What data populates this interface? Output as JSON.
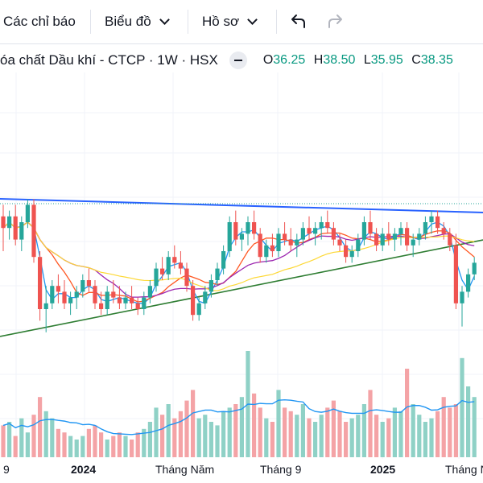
{
  "toolbar": {
    "indicators_label": "Các chỉ báo",
    "chart_label": "Biểu đồ",
    "profile_label": "Hồ sơ",
    "undo_icon": "undo-icon",
    "redo_icon": "redo-icon"
  },
  "legend": {
    "title": "óa chất Dầu khí - CTCP · 1W · HSX",
    "open_key": "O",
    "open": "36.25",
    "high_key": "H",
    "high": "38.50",
    "low_key": "L",
    "low": "35.95",
    "close_key": "C",
    "close": "38.35"
  },
  "colors": {
    "up": "#26a69a",
    "down": "#ef5350",
    "vol_up": "#8fd1c6",
    "vol_down": "#f4a3a6",
    "trend_blue": "#2962ff",
    "trend_green": "#2e7d32",
    "ma_blue": "#2196f3",
    "ma_orange": "#ff5722",
    "ma_purple": "#9c27b0",
    "ma_yellow": "#fdd835"
  },
  "chart_data": {
    "type": "candlestick",
    "x_tick_labels": [
      "9",
      "2024",
      "Tháng Năm",
      "Tháng 9",
      "2025",
      "Tháng N"
    ],
    "grid": true,
    "candles": [
      [
        46,
        48,
        40,
        44
      ],
      [
        44,
        47,
        42,
        46
      ],
      [
        46,
        48,
        41,
        42
      ],
      [
        42,
        46,
        40,
        45
      ],
      [
        45,
        49,
        44,
        48
      ],
      [
        48,
        49,
        38,
        39
      ],
      [
        39,
        40,
        28,
        30
      ],
      [
        30,
        34,
        26,
        31
      ],
      [
        31,
        35,
        30,
        34
      ],
      [
        34,
        36,
        31,
        33
      ],
      [
        33,
        35,
        30,
        31
      ],
      [
        31,
        33,
        29,
        32
      ],
      [
        32,
        34,
        30,
        33
      ],
      [
        33,
        36,
        32,
        35
      ],
      [
        35,
        37,
        33,
        34
      ],
      [
        34,
        35,
        30,
        31
      ],
      [
        31,
        33,
        29,
        30
      ],
      [
        30,
        34,
        29,
        33
      ],
      [
        33,
        35,
        31,
        32
      ],
      [
        32,
        34,
        30,
        31
      ],
      [
        31,
        33,
        30,
        32
      ],
      [
        32,
        34,
        30,
        31
      ],
      [
        31,
        32,
        29,
        30
      ],
      [
        30,
        33,
        29,
        32
      ],
      [
        32,
        35,
        31,
        34
      ],
      [
        34,
        38,
        33,
        37
      ],
      [
        37,
        39,
        35,
        36
      ],
      [
        36,
        40,
        35,
        39
      ],
      [
        39,
        41,
        37,
        38
      ],
      [
        38,
        40,
        36,
        37
      ],
      [
        37,
        38,
        33,
        34
      ],
      [
        34,
        35,
        28,
        29
      ],
      [
        29,
        32,
        28,
        31
      ],
      [
        31,
        34,
        30,
        33
      ],
      [
        33,
        36,
        32,
        35
      ],
      [
        35,
        38,
        34,
        37
      ],
      [
        37,
        41,
        36,
        40
      ],
      [
        40,
        46,
        39,
        45
      ],
      [
        45,
        47,
        41,
        42
      ],
      [
        42,
        44,
        40,
        43
      ],
      [
        43,
        46,
        41,
        45
      ],
      [
        45,
        47,
        42,
        43
      ],
      [
        43,
        44,
        38,
        39
      ],
      [
        39,
        42,
        38,
        41
      ],
      [
        41,
        43,
        39,
        40
      ],
      [
        40,
        44,
        39,
        43
      ],
      [
        43,
        45,
        41,
        42
      ],
      [
        42,
        44,
        40,
        41
      ],
      [
        41,
        43,
        39,
        42
      ],
      [
        42,
        45,
        41,
        44
      ],
      [
        44,
        46,
        42,
        43
      ],
      [
        43,
        45,
        41,
        44
      ],
      [
        44,
        46,
        42,
        45
      ],
      [
        45,
        47,
        43,
        44
      ],
      [
        44,
        45,
        41,
        42
      ],
      [
        42,
        43,
        40,
        41
      ],
      [
        41,
        42,
        38,
        39
      ],
      [
        39,
        41,
        38,
        40
      ],
      [
        40,
        43,
        39,
        42
      ],
      [
        42,
        46,
        41,
        45
      ],
      [
        45,
        47,
        42,
        43
      ],
      [
        43,
        44,
        40,
        41
      ],
      [
        41,
        44,
        40,
        43
      ],
      [
        43,
        45,
        41,
        42
      ],
      [
        42,
        44,
        40,
        43
      ],
      [
        43,
        45,
        41,
        44
      ],
      [
        44,
        45,
        40,
        41
      ],
      [
        41,
        43,
        39,
        42
      ],
      [
        42,
        44,
        41,
        43
      ],
      [
        43,
        46,
        42,
        45
      ],
      [
        45,
        47,
        43,
        46
      ],
      [
        46,
        47,
        43,
        44
      ],
      [
        44,
        45,
        42,
        43
      ],
      [
        43,
        44,
        40,
        41
      ],
      [
        41,
        43,
        30,
        31
      ],
      [
        31,
        34,
        27,
        33
      ],
      [
        33,
        37,
        32,
        36
      ],
      [
        36,
        39,
        35,
        38
      ]
    ],
    "volume": [
      18,
      20,
      12,
      22,
      14,
      24,
      34,
      26,
      22,
      16,
      14,
      12,
      10,
      12,
      16,
      18,
      14,
      10,
      12,
      14,
      12,
      10,
      14,
      16,
      20,
      28,
      24,
      30,
      22,
      26,
      32,
      38,
      22,
      24,
      20,
      18,
      26,
      28,
      30,
      34,
      60,
      36,
      28,
      22,
      20,
      38,
      28,
      26,
      24,
      30,
      22,
      20,
      24,
      28,
      32,
      26,
      20,
      22,
      24,
      30,
      38,
      24,
      20,
      22,
      28,
      26,
      50,
      30,
      24,
      20,
      22,
      26,
      34,
      28,
      30,
      56,
      40,
      34
    ],
    "ma_lines": [
      "ma-fast",
      "ma-medium",
      "ma-slow",
      "ma-long"
    ],
    "trendlines": [
      "resistance-line",
      "support-line"
    ]
  }
}
